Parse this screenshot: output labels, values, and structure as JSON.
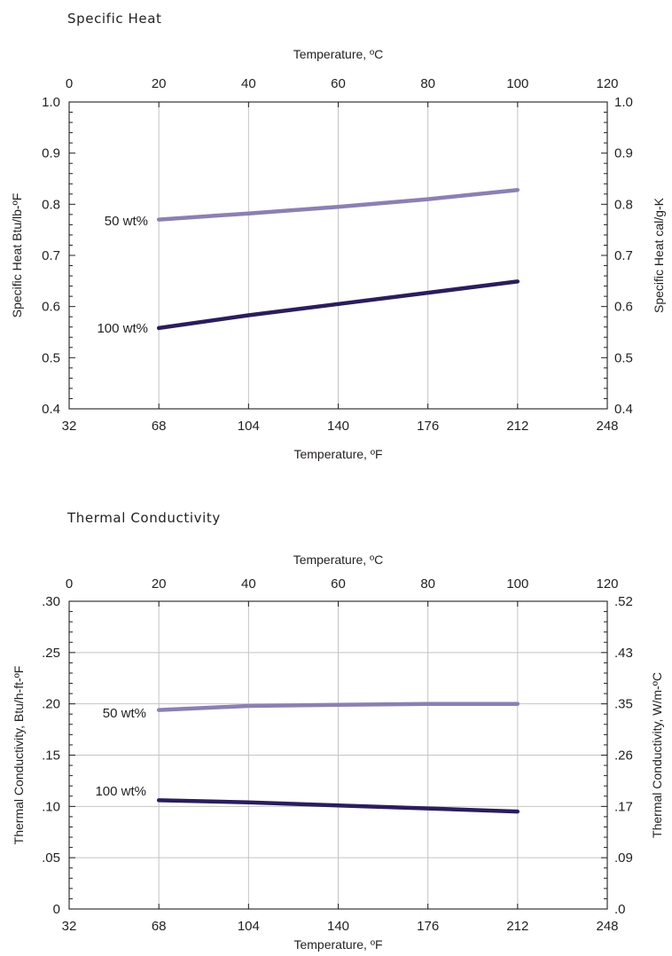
{
  "chart_data": [
    {
      "type": "line",
      "title": "Specific Heat",
      "xlabel": "Temperature, ºF",
      "x2label": "Temperature, ºC",
      "ylabel": "Specific Heat Btu/lb-ºF",
      "y2label": "Specific Heat cal/g-K",
      "xlim": [
        32,
        248
      ],
      "xticks": [
        "32",
        "68",
        "104",
        "140",
        "176",
        "212",
        "248"
      ],
      "x2lim": [
        0,
        120
      ],
      "x2ticks": [
        "0",
        "20",
        "40",
        "60",
        "80",
        "100",
        "120"
      ],
      "ylim": [
        0.4,
        1.0
      ],
      "yticks": [
        "0.4",
        "0.5",
        "0.6",
        "0.7",
        "0.8",
        "0.9",
        "1.0"
      ],
      "y2ticks": [
        "0.4",
        "0.5",
        "0.6",
        "0.7",
        "0.8",
        "0.9",
        "1.0"
      ],
      "grid": "vertical",
      "series": [
        {
          "name": "50 wt%",
          "color": "#8c80b2",
          "x": [
            68,
            104,
            140,
            176,
            212
          ],
          "y": [
            0.77,
            0.782,
            0.795,
            0.81,
            0.828
          ]
        },
        {
          "name": "100 wt%",
          "color": "#2b1d5c",
          "x": [
            68,
            104,
            140,
            176,
            212
          ],
          "y": [
            0.558,
            0.583,
            0.605,
            0.627,
            0.649
          ]
        }
      ]
    },
    {
      "type": "line",
      "title": "Thermal Conductivity",
      "xlabel": "Temperature, ºF",
      "x2label": "Temperature, ºC",
      "ylabel": "Thermal Conductivity, Btu/h-ft-ºF",
      "y2label": "Thermal Conductivity, W/m-ºC",
      "xlim": [
        32,
        248
      ],
      "xticks": [
        "32",
        "68",
        "104",
        "140",
        "176",
        "212",
        "248"
      ],
      "x2lim": [
        0,
        120
      ],
      "x2ticks": [
        "0",
        "20",
        "40",
        "60",
        "80",
        "100",
        "120"
      ],
      "ylim": [
        0,
        0.3
      ],
      "yticks": [
        "0",
        ".05",
        ".10",
        ".15",
        ".20",
        ".25",
        ".30"
      ],
      "y2ticks": [
        ".0",
        ".09",
        ".17",
        ".26",
        ".35",
        ".43",
        ".52"
      ],
      "grid": "both",
      "series": [
        {
          "name": "50 wt%",
          "color": "#8c80b2",
          "x": [
            68,
            104,
            140,
            176,
            212
          ],
          "y": [
            0.194,
            0.198,
            0.199,
            0.2,
            0.2
          ]
        },
        {
          "name": "100 wt%",
          "color": "#2b1d5c",
          "x": [
            68,
            104,
            140,
            176,
            212
          ],
          "y": [
            0.106,
            0.104,
            0.101,
            0.098,
            0.095
          ]
        }
      ]
    }
  ]
}
